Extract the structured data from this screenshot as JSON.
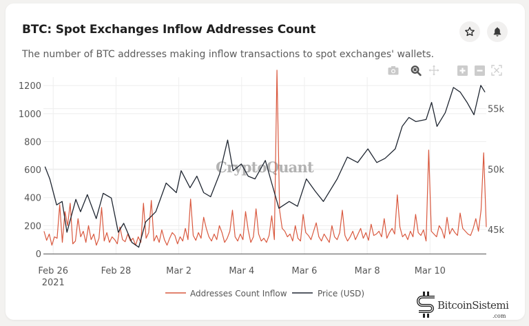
{
  "header": {
    "title": "BTC: Spot Exchanges Inflow Addresses Count",
    "subtitle": "The number of BTC addresses making inflow transactions to spot exchanges' wallets.",
    "favorite_icon": "star-icon",
    "alert_icon": "bell-icon"
  },
  "modebar": {
    "items": [
      "camera-icon",
      "zoom-icon",
      "pan-icon",
      "zoom-in-icon",
      "zoom-out-icon",
      "autoscale-icon"
    ]
  },
  "watermark": {
    "chart_text": "CryptoQuant",
    "logo_text": "BitcoinSistemi",
    "logo_suffix": ".com"
  },
  "colors": {
    "inflow": "#d9583e",
    "price": "#1e2530",
    "grid": "#eeeeee",
    "axis_text": "#555555"
  },
  "chart_data": {
    "type": "line",
    "title": "BTC: Spot Exchanges Inflow Addresses Count",
    "x_unit": "hours since 2021-02-26 00:00",
    "x_range": [
      -7.5,
      331
    ],
    "x_ticks": [
      {
        "hours": 0,
        "label": "Feb 26",
        "sublabel": "2021"
      },
      {
        "hours": 48,
        "label": "Feb 28"
      },
      {
        "hours": 96,
        "label": "Mar 2"
      },
      {
        "hours": 144,
        "label": "Mar 4"
      },
      {
        "hours": 192,
        "label": "Mar 6"
      },
      {
        "hours": 240,
        "label": "Mar 8"
      },
      {
        "hours": 288,
        "label": "Mar 10"
      }
    ],
    "y_left": {
      "label": "",
      "range": [
        0,
        1260
      ],
      "ticks": [
        0,
        200,
        400,
        600,
        800,
        1000,
        1200
      ],
      "tick_labels": [
        "0",
        "200",
        "400",
        "600",
        "800",
        "1000",
        "1200"
      ]
    },
    "y_right": {
      "label": "",
      "range": [
        43000,
        57600
      ],
      "ticks": [
        45000,
        50000,
        55000
      ],
      "tick_labels": [
        "45k",
        "50k",
        "55k"
      ]
    },
    "grid": true,
    "legend": {
      "placement": "bottom-center",
      "entries": [
        "Addresses Count Inflow",
        "Price (USD)"
      ]
    },
    "series": [
      {
        "name": "Addresses Count Inflow",
        "axis": "left",
        "step_hours": 2,
        "start_hours": -7,
        "values": [
          160,
          95,
          140,
          60,
          120,
          110,
          350,
          80,
          300,
          200,
          360,
          70,
          90,
          250,
          120,
          160,
          80,
          200,
          100,
          140,
          60,
          110,
          330,
          90,
          150,
          80,
          120,
          100,
          70,
          190,
          100,
          85,
          140,
          90,
          110,
          60,
          120,
          80,
          360,
          110,
          150,
          380,
          90,
          130,
          80,
          170,
          100,
          60,
          110,
          150,
          130,
          70,
          120,
          90,
          180,
          100,
          390,
          130,
          95,
          150,
          110,
          260,
          180,
          120,
          90,
          140,
          100,
          200,
          150,
          80,
          110,
          160,
          310,
          120,
          90,
          140,
          100,
          300,
          170,
          80,
          120,
          320,
          140,
          90,
          110,
          80,
          130,
          270,
          100,
          1310,
          310,
          180,
          160,
          120,
          140,
          90,
          200,
          110,
          90,
          280,
          150,
          130,
          100,
          160,
          220,
          120,
          90,
          140,
          110,
          80,
          200,
          120,
          100,
          150,
          310,
          130,
          90,
          120,
          160,
          100,
          140,
          180,
          110,
          150,
          95,
          210,
          130,
          140,
          160,
          120,
          250,
          110,
          150,
          180,
          140,
          420,
          190,
          120,
          140,
          100,
          160,
          120,
          280,
          150,
          130,
          170,
          90,
          740,
          160,
          140,
          120,
          200,
          170,
          110,
          260,
          140,
          180,
          150,
          130,
          290,
          180,
          160,
          140,
          130,
          180,
          250,
          160,
          310,
          720,
          190,
          150,
          240,
          160,
          200
        ]
      },
      {
        "name": "Price (USD)",
        "axis": "right",
        "points": [
          [
            -6.3,
            50200
          ],
          [
            -2.6,
            49180
          ],
          [
            2.6,
            47030
          ],
          [
            6.8,
            47320
          ],
          [
            10.5,
            44770
          ],
          [
            17.3,
            47490
          ],
          [
            20.9,
            46470
          ],
          [
            26.1,
            47880
          ],
          [
            32.9,
            45900
          ],
          [
            38.2,
            47990
          ],
          [
            44.4,
            47600
          ],
          [
            49.7,
            44770
          ],
          [
            53.9,
            45510
          ],
          [
            60.1,
            43930
          ],
          [
            65.4,
            43530
          ],
          [
            70.6,
            45620
          ],
          [
            78.4,
            46470
          ],
          [
            86.3,
            48840
          ],
          [
            94.1,
            48050
          ],
          [
            97.8,
            49860
          ],
          [
            104.6,
            48450
          ],
          [
            109.8,
            49410
          ],
          [
            115.0,
            48050
          ],
          [
            120.3,
            47710
          ],
          [
            127.1,
            49580
          ],
          [
            133.3,
            52400
          ],
          [
            137.5,
            49860
          ],
          [
            143.8,
            50420
          ],
          [
            149.0,
            49410
          ],
          [
            154.2,
            49180
          ],
          [
            162.1,
            50710
          ],
          [
            167.3,
            48730
          ],
          [
            172.5,
            46750
          ],
          [
            180.4,
            47320
          ],
          [
            186.7,
            46920
          ],
          [
            193.5,
            49180
          ],
          [
            200.3,
            48160
          ],
          [
            206.5,
            47320
          ],
          [
            217.0,
            49180
          ],
          [
            224.8,
            50990
          ],
          [
            232.7,
            50540
          ],
          [
            240.5,
            51670
          ],
          [
            247.3,
            50540
          ],
          [
            253.6,
            50880
          ],
          [
            261.4,
            51670
          ],
          [
            266.7,
            53530
          ],
          [
            271.9,
            54270
          ],
          [
            277.2,
            53930
          ],
          [
            285.0,
            54100
          ],
          [
            289.2,
            55510
          ],
          [
            293.3,
            53530
          ],
          [
            299.6,
            54660
          ],
          [
            305.9,
            56750
          ],
          [
            311.1,
            56360
          ],
          [
            316.3,
            55510
          ],
          [
            321.6,
            54490
          ],
          [
            326.8,
            56920
          ],
          [
            330.0,
            56360
          ]
        ]
      }
    ]
  }
}
